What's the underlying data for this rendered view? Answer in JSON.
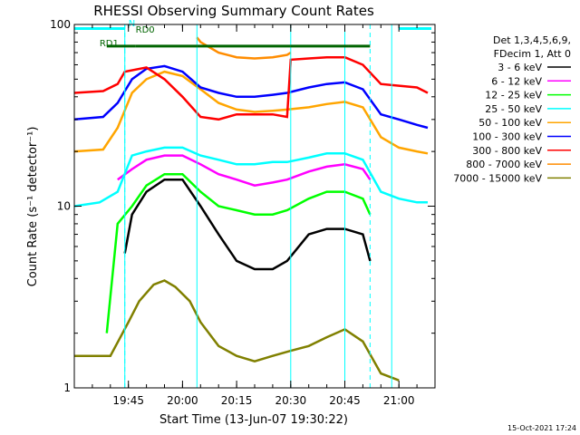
{
  "chart_data": {
    "type": "line",
    "title": "RHESSI Observing Summary Count Rates",
    "xlabel": "Start Time (13-Jun-07 19:30:22)",
    "ylabel": "Count Rate (s⁻¹ detector⁻¹)",
    "yscale": "log",
    "ylim": [
      1,
      100
    ],
    "xlim": [
      "19:30",
      "21:10"
    ],
    "x_ticks": [
      "19:45",
      "20:00",
      "20:15",
      "20:30",
      "20:45",
      "21:00"
    ],
    "y_ticks": [
      "1",
      "10",
      "100"
    ],
    "grid": false,
    "legend_position": "top-right",
    "legend_header": [
      "Det 1,3,4,5,6,9,",
      "FDecim 1, Att 0"
    ],
    "series": [
      {
        "name": "3 - 6 keV",
        "color": "#000000",
        "x": [
          "19:44",
          "19:46",
          "19:50",
          "19:55",
          "20:00",
          "20:05",
          "20:10",
          "20:15",
          "20:20",
          "20:25",
          "20:29",
          "20:35",
          "20:40",
          "20:45",
          "20:50",
          "20:52"
        ],
        "values": [
          5.5,
          9,
          12,
          14,
          14,
          10,
          7,
          5,
          4.5,
          4.5,
          5,
          7,
          7.5,
          7.5,
          7,
          5
        ]
      },
      {
        "name": "6 - 12 keV",
        "color": "#ff00ff",
        "x": [
          "19:42",
          "19:46",
          "19:50",
          "19:55",
          "20:00",
          "20:05",
          "20:10",
          "20:15",
          "20:20",
          "20:25",
          "20:29",
          "20:35",
          "20:40",
          "20:45",
          "20:50",
          "20:52"
        ],
        "values": [
          14,
          16,
          18,
          19,
          19,
          17,
          15,
          14,
          13,
          13.5,
          14,
          15.5,
          16.5,
          17,
          16,
          14
        ]
      },
      {
        "name": "12 - 25 keV",
        "color": "#00ff00",
        "x": [
          "19:39",
          "19:42",
          "19:46",
          "19:50",
          "19:55",
          "20:00",
          "20:05",
          "20:10",
          "20:15",
          "20:20",
          "20:25",
          "20:29",
          "20:35",
          "20:40",
          "20:45",
          "20:50",
          "20:52"
        ],
        "values": [
          2,
          8,
          10,
          13,
          15,
          15,
          12,
          10,
          9.5,
          9,
          9,
          9.5,
          11,
          12,
          12,
          11,
          9
        ]
      },
      {
        "name": "25 - 50 keV",
        "color": "#00ffff",
        "x": [
          "19:30",
          "19:37",
          "19:42",
          "19:46",
          "19:50",
          "19:55",
          "20:00",
          "20:05",
          "20:10",
          "20:15",
          "20:20",
          "20:25",
          "20:29",
          "20:35",
          "20:40",
          "20:45",
          "20:50",
          "20:55",
          "21:00",
          "21:05",
          "21:08"
        ],
        "values": [
          10,
          10.5,
          12,
          19,
          20,
          21,
          21,
          19,
          18,
          17,
          17,
          17.5,
          17.5,
          18.5,
          19.5,
          19.5,
          18,
          12,
          11,
          10.5,
          10.5
        ]
      },
      {
        "name": "50 - 100 keV",
        "color": "#ffa500",
        "x": [
          "19:30",
          "19:38",
          "19:42",
          "19:46",
          "19:50",
          "19:55",
          "20:00",
          "20:05",
          "20:10",
          "20:15",
          "20:20",
          "20:25",
          "20:29",
          "20:35",
          "20:40",
          "20:45",
          "20:50",
          "20:55",
          "21:00",
          "21:05",
          "21:08"
        ],
        "values": [
          20,
          20.5,
          27,
          42,
          50,
          55,
          52,
          44,
          37,
          34,
          33,
          33.5,
          34,
          35,
          36.5,
          37.5,
          35,
          24,
          21,
          20,
          19.5
        ]
      },
      {
        "name": "100 - 300 keV",
        "color": "#0000ff",
        "x": [
          "19:30",
          "19:38",
          "19:42",
          "19:46",
          "19:50",
          "19:55",
          "20:00",
          "20:05",
          "20:10",
          "20:15",
          "20:20",
          "20:25",
          "20:29",
          "20:35",
          "20:40",
          "20:45",
          "20:50",
          "20:55",
          "21:00",
          "21:05",
          "21:08"
        ],
        "values": [
          30,
          31,
          37,
          50,
          57,
          59,
          55,
          45,
          42,
          40,
          40,
          41,
          42,
          45,
          47,
          48,
          44,
          32,
          30,
          28,
          27
        ]
      },
      {
        "name": "300 - 800 keV",
        "color": "#ff0000",
        "x": [
          "19:30",
          "19:38",
          "19:42",
          "19:44",
          "19:50",
          "19:55",
          "20:00",
          "20:05",
          "20:10",
          "20:15",
          "20:20",
          "20:25",
          "20:29",
          "20:30",
          "20:35",
          "20:40",
          "20:45",
          "20:50",
          "20:55",
          "21:00",
          "21:05",
          "21:08"
        ],
        "values": [
          42,
          43,
          47,
          55,
          58,
          50,
          40,
          31,
          30,
          32,
          32,
          32,
          31,
          64,
          65,
          66,
          66,
          60,
          47,
          46,
          45,
          42
        ]
      },
      {
        "name": "800 - 7000 keV",
        "color": "#ff8c00",
        "x": [
          "20:04",
          "20:05",
          "20:10",
          "20:15",
          "20:20",
          "20:25",
          "20:29",
          "20:30"
        ],
        "values": [
          85,
          80,
          70,
          66,
          65,
          66,
          68,
          70
        ]
      },
      {
        "name": "7000 - 15000 keV",
        "color": "#808000",
        "x": [
          "19:30",
          "19:40",
          "19:45",
          "19:48",
          "19:52",
          "19:55",
          "19:58",
          "20:02",
          "20:05",
          "20:10",
          "20:15",
          "20:20",
          "20:25",
          "20:30",
          "20:35",
          "20:40",
          "20:45",
          "20:50",
          "20:55",
          "21:00"
        ],
        "values": [
          1.5,
          1.5,
          2.3,
          3,
          3.7,
          3.9,
          3.6,
          3,
          2.3,
          1.7,
          1.5,
          1.4,
          1.5,
          1.6,
          1.7,
          1.9,
          2.1,
          1.8,
          1.2,
          1.1
        ]
      }
    ],
    "annotations": [
      {
        "text": "N",
        "color": "#00ffff",
        "x": "19:45",
        "y": 98
      },
      {
        "text": "RD0",
        "color": "#006400",
        "x": "19:47",
        "y": 90
      },
      {
        "text": "RD1",
        "color": "#006400",
        "x": "19:37",
        "y": 76
      }
    ],
    "flags": [
      {
        "name": "night",
        "color": "#00ffff",
        "spans": [
          [
            "19:30",
            "19:44"
          ],
          [
            "21:00",
            "21:09"
          ]
        ],
        "level": 95
      },
      {
        "name": "SAA",
        "color": "#006400",
        "spans": [
          [
            "19:39",
            "19:47"
          ],
          [
            "19:47",
            "20:04"
          ],
          [
            "20:04",
            "20:30"
          ],
          [
            "20:30",
            "20:46"
          ],
          [
            "20:46",
            "20:52"
          ]
        ],
        "level": 76
      }
    ],
    "vlines_solid": [
      "19:30",
      "19:44",
      "20:04",
      "20:30",
      "20:45",
      "20:58"
    ],
    "vlines_dashed": [
      "19:44",
      "20:52",
      "21:10"
    ]
  },
  "footer": {
    "date": "15-Oct-2021 17:24"
  }
}
